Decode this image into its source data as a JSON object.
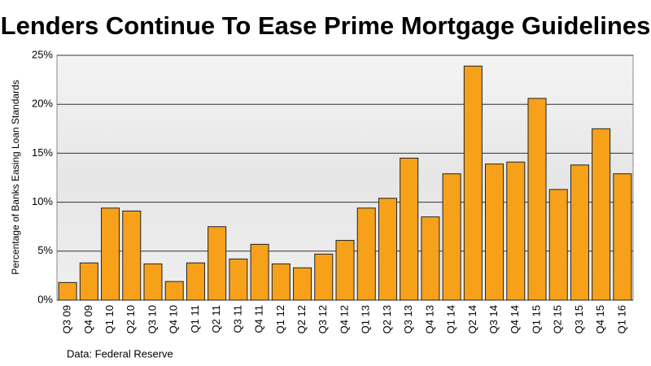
{
  "chart_data": {
    "type": "bar",
    "title": "Lenders Continue To Ease Prime Mortgage Guidelines",
    "y_label": "Percentage of Banks Easing Loan Standards",
    "source": "Data: Federal Reserve",
    "categories": [
      "Q3 09",
      "Q4 09",
      "Q1 10",
      "Q2 10",
      "Q3 10",
      "Q4 10",
      "Q1 11",
      "Q2 11",
      "Q3 11",
      "Q4 11",
      "Q1 12",
      "Q2 12",
      "Q3 12",
      "Q4 12",
      "Q1 13",
      "Q2 13",
      "Q3 13",
      "Q4 13",
      "Q1 14",
      "Q2 14",
      "Q3 14",
      "Q4 14",
      "Q1 15",
      "Q2 15",
      "Q3 15",
      "Q4 15",
      "Q1 16"
    ],
    "values": [
      1.8,
      3.8,
      9.4,
      9.1,
      3.7,
      1.9,
      3.8,
      7.5,
      4.2,
      5.7,
      3.7,
      3.3,
      4.7,
      6.1,
      9.4,
      10.4,
      14.5,
      8.5,
      12.9,
      23.9,
      13.9,
      14.1,
      20.6,
      11.3,
      13.8,
      17.5,
      12.9
    ],
    "color": "#f7a11a",
    "ylim": [
      0,
      25
    ],
    "yticks": [
      {
        "value": 0,
        "label": "0%"
      },
      {
        "value": 5,
        "label": "5%"
      },
      {
        "value": 10,
        "label": "10%"
      },
      {
        "value": 15,
        "label": "15%"
      },
      {
        "value": 20,
        "label": "20%"
      },
      {
        "value": 25,
        "label": "25%"
      }
    ],
    "grid": true
  }
}
